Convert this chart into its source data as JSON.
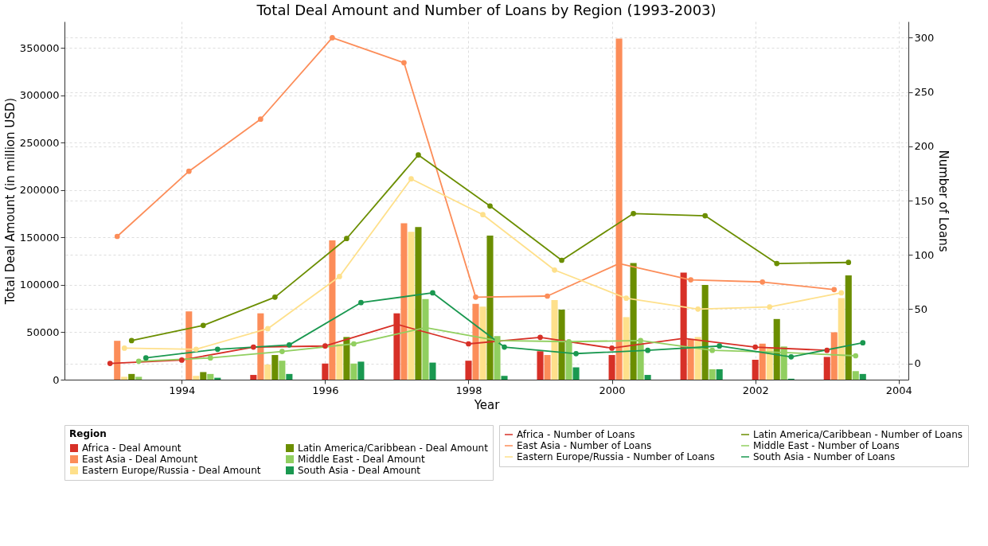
{
  "chart_data": {
    "type": "bar",
    "title": "Total Deal Amount and Number of Loans by Region (1993-2003)",
    "xlabel": "Year",
    "ylabel": "Total Deal Amount (in million USD)",
    "y2label": "Number of Loans",
    "legend_title": "Region",
    "xlim": [
      1992.42,
      2004.08
    ],
    "xticks": [
      1994,
      1996,
      1998,
      2000,
      2002,
      2004
    ],
    "ylim": [
      0,
      378000
    ],
    "yticks": [
      0,
      50000,
      100000,
      150000,
      200000,
      250000,
      300000,
      350000
    ],
    "y2lim": [
      -15,
      315
    ],
    "y2ticks": [
      0,
      50,
      100,
      150,
      200,
      250,
      300
    ],
    "grid": true,
    "legend": "bottom",
    "marker": "circle",
    "line_style": "solid",
    "series": [
      {
        "name": "Africa - Deal Amount",
        "color": "#d73027",
        "x": [
          1993.0,
          1994.0,
          1995.0,
          1996.0,
          1997.0,
          1998.0,
          1999.0,
          2000.0,
          2001.0,
          2002.0,
          2003.0
        ],
        "values": [
          0,
          0,
          5000,
          17000,
          70000,
          20000,
          30000,
          26000,
          113000,
          21000,
          24000
        ]
      },
      {
        "name": "East Asia - Deal Amount",
        "color": "#fc8d59",
        "x": [
          1993.1,
          1994.1,
          1995.1,
          1996.1,
          1997.1,
          1998.1,
          1999.1,
          2000.1,
          2001.1,
          2002.1,
          2003.1
        ],
        "values": [
          41000,
          72000,
          70000,
          147000,
          165000,
          80000,
          26000,
          360000,
          43000,
          38000,
          50000
        ]
      },
      {
        "name": "Eastern Europe/Russia - Deal Amount",
        "color": "#fee08b",
        "x": [
          1993.2,
          1994.2,
          1995.2,
          1996.2,
          1997.2,
          1998.2,
          1999.2,
          2000.2,
          2001.2,
          2002.2,
          2003.2
        ],
        "values": [
          3000,
          4000,
          16000,
          38000,
          156000,
          77000,
          84000,
          66000,
          45000,
          33000,
          86000
        ]
      },
      {
        "name": "Latin America/Caribbean - Deal Amount",
        "color": "#6b8e00",
        "x": [
          1993.3,
          1994.3,
          1995.3,
          1996.3,
          1997.3,
          1998.3,
          1999.3,
          2000.3,
          2001.3,
          2002.3,
          2003.3
        ],
        "values": [
          6000,
          8000,
          26000,
          45000,
          161000,
          152000,
          74000,
          123000,
          100000,
          64000,
          110000
        ]
      },
      {
        "name": "Middle East - Deal Amount",
        "color": "#91cf60",
        "x": [
          1993.4,
          1994.4,
          1995.4,
          1996.4,
          1997.4,
          1998.4,
          1999.4,
          2000.4,
          2001.4,
          2002.4,
          2003.4
        ],
        "values": [
          3000,
          6000,
          20000,
          17000,
          85000,
          46000,
          41000,
          39000,
          11000,
          35000,
          9000
        ]
      },
      {
        "name": "South Asia - Deal Amount",
        "color": "#1a9850",
        "x": [
          1993.5,
          1994.5,
          1995.5,
          1996.5,
          1997.5,
          1998.5,
          1999.5,
          2000.5,
          2001.5,
          2002.5,
          2003.5
        ],
        "values": [
          0,
          2000,
          6000,
          19000,
          18000,
          4000,
          13000,
          5000,
          11000,
          1000,
          6000
        ]
      },
      {
        "name": "Africa - Number of Loans",
        "type": "line",
        "axis": "y2",
        "color": "#d73027",
        "x": [
          1993.0,
          1994.0,
          1995.0,
          1996.0,
          1997.0,
          1998.0,
          1999.0,
          2000.0,
          2001.0,
          2002.0,
          2003.0
        ],
        "values": [
          0,
          3,
          15,
          16,
          36,
          18,
          24,
          14,
          23,
          15,
          12
        ]
      },
      {
        "name": "East Asia - Number of Loans",
        "type": "line",
        "axis": "y2",
        "color": "#fc8d59",
        "x": [
          1993.1,
          1994.1,
          1995.1,
          1996.1,
          1997.1,
          1998.1,
          1999.1,
          2000.1,
          2001.1,
          2002.1,
          2003.1
        ],
        "values": [
          117,
          177,
          225,
          300,
          277,
          61,
          62,
          92,
          77,
          75,
          68
        ]
      },
      {
        "name": "Eastern Europe/Russia - Number of Loans",
        "type": "line",
        "axis": "y2",
        "color": "#fee08b",
        "x": [
          1993.2,
          1994.2,
          1995.2,
          1996.2,
          1997.2,
          1998.2,
          1999.2,
          2000.2,
          2001.2,
          2002.2,
          2003.2
        ],
        "values": [
          14,
          13,
          32,
          80,
          170,
          137,
          86,
          60,
          50,
          52,
          65
        ]
      },
      {
        "name": "Latin America/Caribbean - Number of Loans",
        "type": "line",
        "axis": "y2",
        "color": "#6b8e00",
        "x": [
          1993.3,
          1994.3,
          1995.3,
          1996.3,
          1997.3,
          1998.3,
          1999.3,
          2000.3,
          2001.3,
          2002.3,
          2003.3
        ],
        "values": [
          21,
          35,
          61,
          115,
          192,
          145,
          95,
          138,
          136,
          92,
          93
        ]
      },
      {
        "name": "Middle East - Number of Loans",
        "type": "line",
        "axis": "y2",
        "color": "#91cf60",
        "x": [
          1993.4,
          1994.4,
          1995.4,
          1996.4,
          1997.4,
          1998.4,
          1999.4,
          2000.4,
          2001.4,
          2002.4,
          2003.4
        ],
        "values": [
          2,
          5,
          11,
          18,
          33,
          21,
          20,
          21,
          12,
          10,
          7
        ]
      },
      {
        "name": "South Asia - Number of Loans",
        "type": "line",
        "axis": "y2",
        "color": "#1a9850",
        "x": [
          1993.5,
          1994.5,
          1995.5,
          1996.5,
          1997.5,
          1998.5,
          1999.5,
          2000.5,
          2001.5,
          2002.5,
          2003.5
        ],
        "values": [
          5,
          13,
          17,
          56,
          65,
          15,
          9,
          12,
          16,
          6,
          19
        ]
      }
    ]
  }
}
